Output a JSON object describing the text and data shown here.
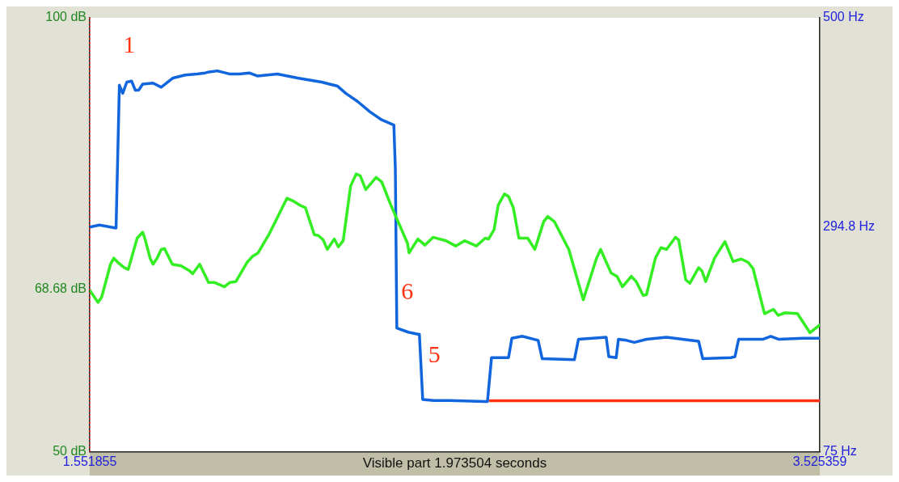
{
  "chart_data": {
    "type": "line",
    "xlabel": "Visible part 1.973504 seconds",
    "xlim": [
      1.551855,
      3.525359
    ],
    "xticks": [
      1.551855,
      3.525359
    ],
    "ylim": [
      50,
      100
    ],
    "yticks": [
      {
        "value": 50,
        "label": "50 dB"
      },
      {
        "value": 68.68,
        "label": "68.68 dB"
      },
      {
        "value": 100,
        "label": "100 dB"
      }
    ],
    "y2lim": [
      75,
      500
    ],
    "y2ticks": [
      {
        "value": 75,
        "label": "75 Hz"
      },
      {
        "value": 294.8,
        "label": "294.8 Hz"
      },
      {
        "value": 500,
        "label": "500 Hz"
      }
    ],
    "grid": false,
    "legend": false,
    "marker": "none",
    "line_style": "solid",
    "series": [
      {
        "color": "#33ee22",
        "x": [
          1.552,
          1.574,
          1.584,
          1.608,
          1.617,
          1.628,
          1.645,
          1.656,
          1.68,
          1.695,
          1.702,
          1.715,
          1.723,
          1.734,
          1.745,
          1.754,
          1.775,
          1.799,
          1.823,
          1.83,
          1.849,
          1.873,
          1.888,
          1.916,
          1.931,
          1.947,
          1.977,
          1.992,
          2.007,
          2.036,
          2.085,
          2.101,
          2.12,
          2.135,
          2.159,
          2.17,
          2.183,
          2.194,
          2.213,
          2.224,
          2.237,
          2.257,
          2.272,
          2.283,
          2.298,
          2.326,
          2.341,
          2.365,
          2.411,
          2.415,
          2.439,
          2.458,
          2.48,
          2.515,
          2.541,
          2.565,
          2.597,
          2.621,
          2.63,
          2.645,
          2.656,
          2.673,
          2.684,
          2.697,
          2.712,
          2.736,
          2.755,
          2.779,
          2.79,
          2.808,
          2.847,
          2.886,
          2.922,
          2.933,
          2.961,
          2.977,
          2.992,
          3.016,
          3.029,
          3.048,
          3.057,
          3.081,
          3.096,
          3.111,
          3.135,
          3.144,
          3.163,
          3.174,
          3.198,
          3.207,
          3.217,
          3.241,
          3.269,
          3.291,
          3.313,
          3.332,
          3.345,
          3.376,
          3.4,
          3.413,
          3.432,
          3.465,
          3.499,
          3.525
        ],
        "values": [
          68.6,
          67.2,
          67.8,
          71.6,
          72.3,
          71.8,
          71.2,
          71.0,
          74.6,
          75.3,
          74.4,
          72.3,
          71.6,
          72.3,
          73.3,
          73.4,
          71.6,
          71.4,
          70.8,
          70.5,
          71.6,
          69.5,
          69.5,
          69.0,
          69.5,
          69.6,
          71.8,
          72.5,
          72.9,
          75.0,
          79.2,
          78.9,
          78.4,
          78.1,
          75.0,
          74.9,
          74.4,
          73.3,
          74.5,
          73.6,
          74.3,
          80.6,
          82.0,
          81.8,
          80.2,
          81.6,
          81.1,
          78.5,
          74.0,
          72.9,
          74.5,
          73.8,
          74.7,
          74.3,
          73.7,
          74.3,
          73.7,
          74.6,
          74.5,
          75.6,
          78.4,
          79.7,
          79.4,
          78.1,
          74.6,
          74.6,
          73.3,
          76.5,
          77.1,
          76.5,
          73.3,
          67.5,
          72.3,
          73.3,
          70.6,
          70.2,
          69.0,
          70.2,
          69.6,
          68.0,
          68.1,
          72.3,
          73.5,
          73.3,
          74.7,
          74.4,
          69.8,
          69.4,
          71.2,
          70.8,
          69.6,
          72.3,
          74.2,
          71.9,
          72.2,
          71.8,
          71.1,
          65.9,
          66.4,
          65.7,
          66.0,
          65.9,
          63.7,
          64.6
        ]
      },
      {
        "color": "#1166dd",
        "axis": "y2",
        "x": [
          1.552,
          1.578,
          1.623,
          1.632,
          1.641,
          1.652,
          1.665,
          1.675,
          1.684,
          1.695,
          1.723,
          1.745,
          1.777,
          1.81,
          1.842,
          1.864,
          1.875,
          1.897,
          1.929,
          1.957,
          1.983,
          2.005,
          2.059,
          2.114,
          2.146,
          2.179,
          2.2,
          2.222,
          2.244,
          2.276,
          2.309,
          2.341,
          2.374,
          2.378,
          2.382,
          2.413,
          2.439,
          2.443,
          2.452,
          2.482,
          2.525,
          2.621,
          2.627,
          2.638,
          2.684,
          2.693,
          2.721,
          2.764,
          2.775,
          2.862,
          2.873,
          2.948,
          2.955,
          2.975,
          2.981,
          3.003,
          3.024,
          3.057,
          3.111,
          3.176,
          3.198,
          3.209,
          3.285,
          3.296,
          3.306,
          3.371,
          3.393,
          3.415,
          3.48,
          3.525
        ],
        "values": [
          295,
          297,
          294,
          434,
          426,
          437,
          438,
          429,
          429,
          435,
          436,
          432,
          441,
          444,
          445,
          446,
          447,
          448,
          445,
          445,
          446,
          443,
          445,
          441,
          439,
          437,
          435,
          433,
          426,
          418,
          408,
          400,
          395,
          352,
          196,
          192,
          190,
          190,
          126,
          125,
          125,
          124,
          124,
          167,
          167,
          186,
          188,
          184,
          166,
          165,
          185,
          187,
          168,
          167,
          185,
          184,
          182,
          185,
          187,
          184,
          183,
          166,
          167,
          168,
          185,
          185,
          188,
          185,
          186,
          186
        ]
      },
      {
        "color": "#ff3311",
        "axis": "y2",
        "x": [
          2.634,
          3.525
        ],
        "values": [
          124.8,
          124.8
        ]
      }
    ],
    "ref_lines": [
      {
        "axis": "x",
        "value": 1.551855,
        "color": "#ff2222",
        "line_style": "dotted"
      }
    ],
    "annotations": [
      "1",
      "6",
      "5"
    ]
  }
}
